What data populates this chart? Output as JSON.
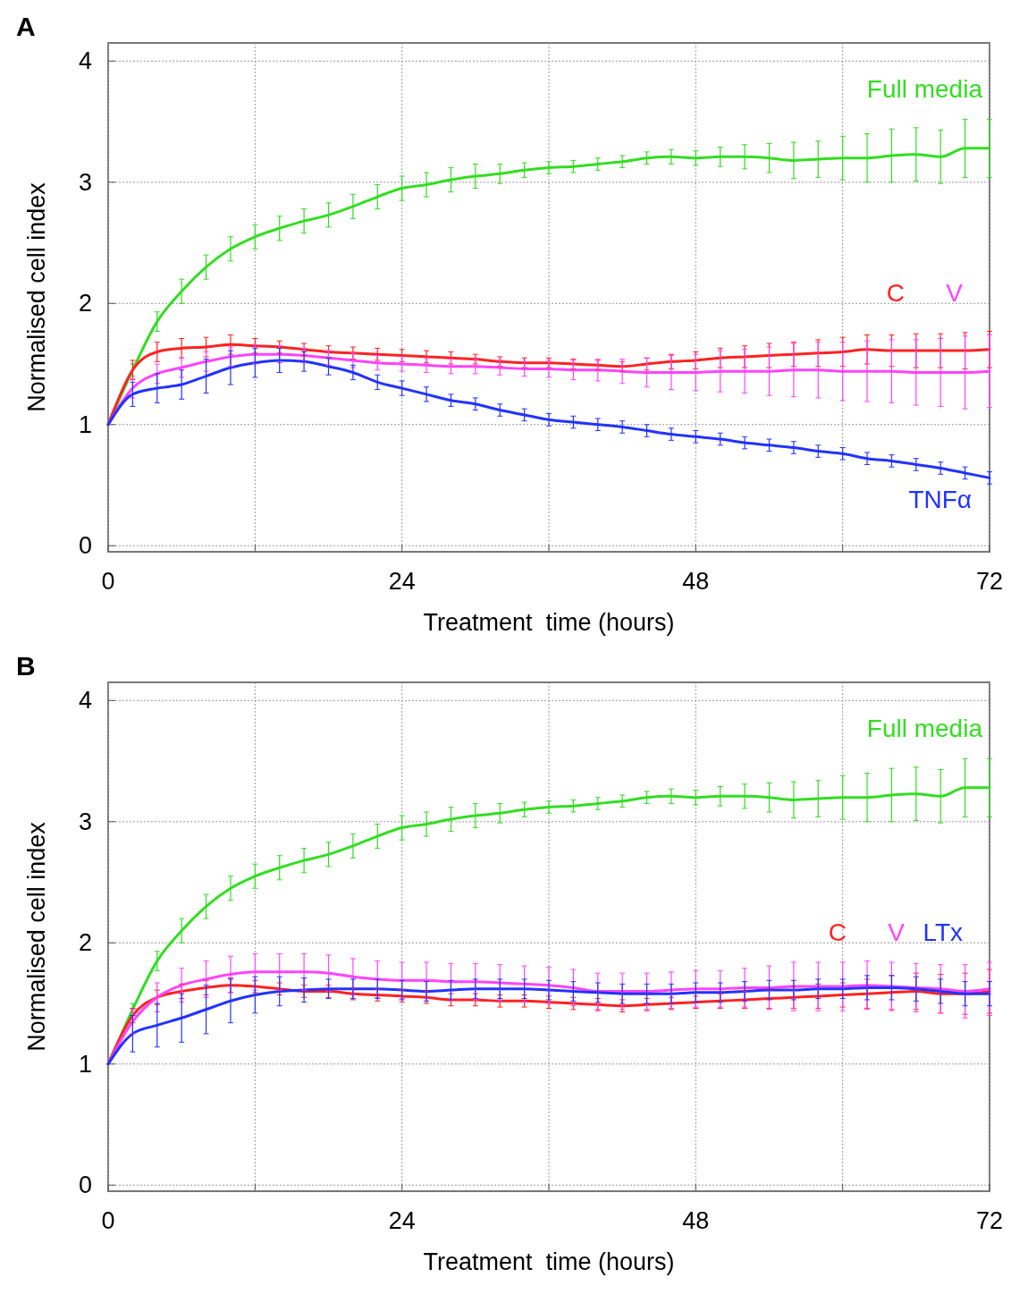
{
  "chart_data": [
    {
      "type": "line",
      "title": "A",
      "xlabel": "Treatment  time (hours)",
      "ylabel": "Normalised cell index",
      "xlim": [
        0,
        72
      ],
      "ylim": [
        -0.05,
        4.15
      ],
      "xticks": [
        0,
        {
          "value": 12,
          "label": null
        },
        24,
        {
          "value": 36,
          "label": null
        },
        48,
        {
          "value": 60,
          "label": null
        },
        72
      ],
      "yticks": [
        0,
        1,
        2,
        3,
        4
      ],
      "grid": true,
      "marker": "none",
      "line_style": "solid",
      "x": [
        0,
        2,
        4,
        6,
        8,
        10,
        12,
        14,
        16,
        18,
        20,
        22,
        24,
        26,
        28,
        30,
        32,
        34,
        36,
        38,
        40,
        42,
        44,
        46,
        48,
        50,
        52,
        54,
        56,
        58,
        60,
        62,
        64,
        66,
        68,
        70,
        72
      ],
      "series": [
        {
          "name": "Full media",
          "color": "#33dd22",
          "values": [
            1.0,
            1.45,
            1.85,
            2.1,
            2.3,
            2.45,
            2.55,
            2.62,
            2.68,
            2.73,
            2.8,
            2.88,
            2.95,
            2.98,
            3.02,
            3.05,
            3.07,
            3.1,
            3.12,
            3.13,
            3.15,
            3.17,
            3.2,
            3.21,
            3.2,
            3.21,
            3.21,
            3.2,
            3.18,
            3.19,
            3.2,
            3.2,
            3.22,
            3.23,
            3.21,
            3.28,
            3.28
          ],
          "errors": [
            null,
            0.05,
            0.08,
            0.1,
            0.1,
            0.1,
            0.1,
            0.1,
            0.1,
            0.1,
            0.1,
            0.1,
            0.1,
            0.1,
            0.1,
            0.1,
            0.08,
            0.06,
            0.05,
            0.05,
            0.05,
            0.05,
            0.05,
            0.06,
            0.06,
            0.08,
            0.1,
            0.12,
            0.15,
            0.15,
            0.18,
            0.2,
            0.22,
            0.22,
            0.22,
            0.24,
            0.24
          ]
        },
        {
          "name": "C",
          "color": "#ff2222",
          "values": [
            1.0,
            1.45,
            1.6,
            1.63,
            1.64,
            1.66,
            1.65,
            1.64,
            1.62,
            1.6,
            1.59,
            1.58,
            1.57,
            1.56,
            1.55,
            1.54,
            1.52,
            1.51,
            1.51,
            1.5,
            1.49,
            1.48,
            1.5,
            1.52,
            1.53,
            1.55,
            1.56,
            1.57,
            1.58,
            1.59,
            1.6,
            1.62,
            1.61,
            1.61,
            1.61,
            1.61,
            1.62
          ],
          "errors": [
            null,
            0.08,
            0.08,
            0.08,
            0.08,
            0.08,
            0.06,
            0.05,
            0.05,
            0.05,
            0.05,
            0.05,
            0.05,
            0.05,
            0.05,
            0.04,
            0.04,
            0.04,
            0.04,
            0.04,
            0.04,
            0.04,
            0.05,
            0.06,
            0.07,
            0.08,
            0.09,
            0.1,
            0.1,
            0.11,
            0.12,
            0.12,
            0.13,
            0.14,
            0.14,
            0.15,
            0.15
          ]
        },
        {
          "name": "V",
          "color": "#ff44ff",
          "values": [
            1.0,
            1.3,
            1.42,
            1.47,
            1.52,
            1.56,
            1.58,
            1.58,
            1.57,
            1.55,
            1.53,
            1.51,
            1.5,
            1.49,
            1.48,
            1.48,
            1.47,
            1.46,
            1.46,
            1.45,
            1.45,
            1.44,
            1.43,
            1.43,
            1.43,
            1.44,
            1.44,
            1.44,
            1.45,
            1.45,
            1.44,
            1.44,
            1.44,
            1.43,
            1.43,
            1.43,
            1.44
          ],
          "errors": [
            null,
            0.08,
            0.08,
            0.08,
            0.08,
            0.08,
            0.08,
            0.07,
            0.06,
            0.06,
            0.06,
            0.06,
            0.06,
            0.06,
            0.06,
            0.06,
            0.06,
            0.06,
            0.07,
            0.08,
            0.09,
            0.1,
            0.12,
            0.14,
            0.15,
            0.17,
            0.18,
            0.2,
            0.22,
            0.23,
            0.24,
            0.25,
            0.26,
            0.27,
            0.28,
            0.3,
            0.3
          ]
        },
        {
          "name": "TNFα",
          "color": "#2233ff",
          "values": [
            1.0,
            1.25,
            1.3,
            1.33,
            1.4,
            1.47,
            1.51,
            1.53,
            1.52,
            1.48,
            1.43,
            1.35,
            1.3,
            1.25,
            1.2,
            1.17,
            1.12,
            1.08,
            1.04,
            1.02,
            1.0,
            0.98,
            0.95,
            0.92,
            0.9,
            0.88,
            0.85,
            0.83,
            0.81,
            0.78,
            0.76,
            0.72,
            0.7,
            0.67,
            0.64,
            0.6,
            0.56
          ],
          "errors": [
            null,
            0.1,
            0.12,
            0.12,
            0.14,
            0.14,
            0.12,
            0.1,
            0.08,
            0.07,
            0.06,
            0.06,
            0.06,
            0.06,
            0.05,
            0.05,
            0.05,
            0.05,
            0.05,
            0.05,
            0.05,
            0.05,
            0.05,
            0.05,
            0.05,
            0.05,
            0.05,
            0.05,
            0.05,
            0.05,
            0.05,
            0.05,
            0.05,
            0.05,
            0.05,
            0.05,
            0.05
          ]
        }
      ]
    },
    {
      "type": "line",
      "title": "B",
      "xlabel": "Treatment  time (hours)",
      "ylabel": "Normalised cell index",
      "xlim": [
        0,
        72
      ],
      "ylim": [
        -0.05,
        4.15
      ],
      "xticks": [
        0,
        {
          "value": 12,
          "label": null
        },
        24,
        {
          "value": 36,
          "label": null
        },
        48,
        {
          "value": 60,
          "label": null
        },
        72
      ],
      "yticks": [
        0,
        1,
        2,
        3,
        4
      ],
      "grid": true,
      "marker": "none",
      "line_style": "solid",
      "x": [
        0,
        2,
        4,
        6,
        8,
        10,
        12,
        14,
        16,
        18,
        20,
        22,
        24,
        26,
        28,
        30,
        32,
        34,
        36,
        38,
        40,
        42,
        44,
        46,
        48,
        50,
        52,
        54,
        56,
        58,
        60,
        62,
        64,
        66,
        68,
        70,
        72
      ],
      "series": [
        {
          "name": "Full media",
          "color": "#33dd22",
          "values": [
            1.0,
            1.45,
            1.85,
            2.1,
            2.3,
            2.45,
            2.55,
            2.62,
            2.68,
            2.73,
            2.8,
            2.88,
            2.95,
            2.98,
            3.02,
            3.05,
            3.07,
            3.1,
            3.12,
            3.13,
            3.15,
            3.17,
            3.2,
            3.21,
            3.2,
            3.21,
            3.21,
            3.2,
            3.18,
            3.19,
            3.2,
            3.2,
            3.22,
            3.23,
            3.21,
            3.28,
            3.28
          ],
          "errors": [
            null,
            0.05,
            0.08,
            0.1,
            0.1,
            0.1,
            0.1,
            0.1,
            0.1,
            0.1,
            0.1,
            0.1,
            0.1,
            0.1,
            0.1,
            0.1,
            0.08,
            0.06,
            0.05,
            0.05,
            0.05,
            0.05,
            0.05,
            0.06,
            0.06,
            0.08,
            0.1,
            0.12,
            0.15,
            0.15,
            0.18,
            0.2,
            0.22,
            0.22,
            0.22,
            0.24,
            0.24
          ]
        },
        {
          "name": "C",
          "color": "#ff2222",
          "values": [
            1.0,
            1.4,
            1.55,
            1.6,
            1.63,
            1.65,
            1.64,
            1.62,
            1.6,
            1.6,
            1.58,
            1.57,
            1.56,
            1.55,
            1.53,
            1.53,
            1.52,
            1.52,
            1.51,
            1.5,
            1.49,
            1.48,
            1.49,
            1.5,
            1.51,
            1.52,
            1.53,
            1.54,
            1.55,
            1.56,
            1.57,
            1.58,
            1.59,
            1.6,
            1.58,
            1.58,
            1.6
          ],
          "errors": [
            null,
            0.06,
            0.06,
            0.06,
            0.06,
            0.06,
            0.05,
            0.05,
            0.05,
            0.05,
            0.05,
            0.05,
            0.05,
            0.05,
            0.05,
            0.05,
            0.05,
            0.05,
            0.05,
            0.05,
            0.05,
            0.05,
            0.05,
            0.05,
            0.05,
            0.06,
            0.07,
            0.08,
            0.09,
            0.1,
            0.1,
            0.12,
            0.14,
            0.15,
            0.16,
            0.17,
            0.18
          ]
        },
        {
          "name": "V",
          "color": "#ff44ff",
          "values": [
            1.0,
            1.35,
            1.55,
            1.65,
            1.7,
            1.74,
            1.76,
            1.76,
            1.76,
            1.75,
            1.72,
            1.7,
            1.69,
            1.69,
            1.68,
            1.68,
            1.67,
            1.66,
            1.65,
            1.63,
            1.6,
            1.6,
            1.6,
            1.61,
            1.62,
            1.62,
            1.63,
            1.63,
            1.64,
            1.64,
            1.64,
            1.65,
            1.64,
            1.63,
            1.62,
            1.6,
            1.62
          ],
          "errors": [
            null,
            0.1,
            0.12,
            0.14,
            0.15,
            0.15,
            0.15,
            0.15,
            0.15,
            0.15,
            0.15,
            0.15,
            0.15,
            0.15,
            0.15,
            0.15,
            0.15,
            0.15,
            0.15,
            0.15,
            0.15,
            0.15,
            0.15,
            0.15,
            0.15,
            0.15,
            0.16,
            0.18,
            0.2,
            0.2,
            0.2,
            0.2,
            0.2,
            0.2,
            0.2,
            0.22,
            0.22
          ]
        },
        {
          "name": "LTx",
          "color": "#2233ff",
          "values": [
            1.0,
            1.25,
            1.32,
            1.38,
            1.45,
            1.52,
            1.57,
            1.6,
            1.61,
            1.62,
            1.62,
            1.62,
            1.61,
            1.6,
            1.61,
            1.62,
            1.62,
            1.62,
            1.61,
            1.6,
            1.59,
            1.58,
            1.58,
            1.58,
            1.59,
            1.59,
            1.6,
            1.61,
            1.61,
            1.62,
            1.62,
            1.63,
            1.63,
            1.62,
            1.6,
            1.58,
            1.58
          ],
          "errors": [
            null,
            0.15,
            0.18,
            0.2,
            0.2,
            0.18,
            0.15,
            0.12,
            0.1,
            0.08,
            0.08,
            0.08,
            0.08,
            0.08,
            0.08,
            0.08,
            0.08,
            0.08,
            0.08,
            0.08,
            0.08,
            0.08,
            0.08,
            0.08,
            0.08,
            0.08,
            0.08,
            0.08,
            0.08,
            0.08,
            0.08,
            0.1,
            0.1,
            0.1,
            0.1,
            0.1,
            0.1
          ]
        }
      ]
    }
  ]
}
